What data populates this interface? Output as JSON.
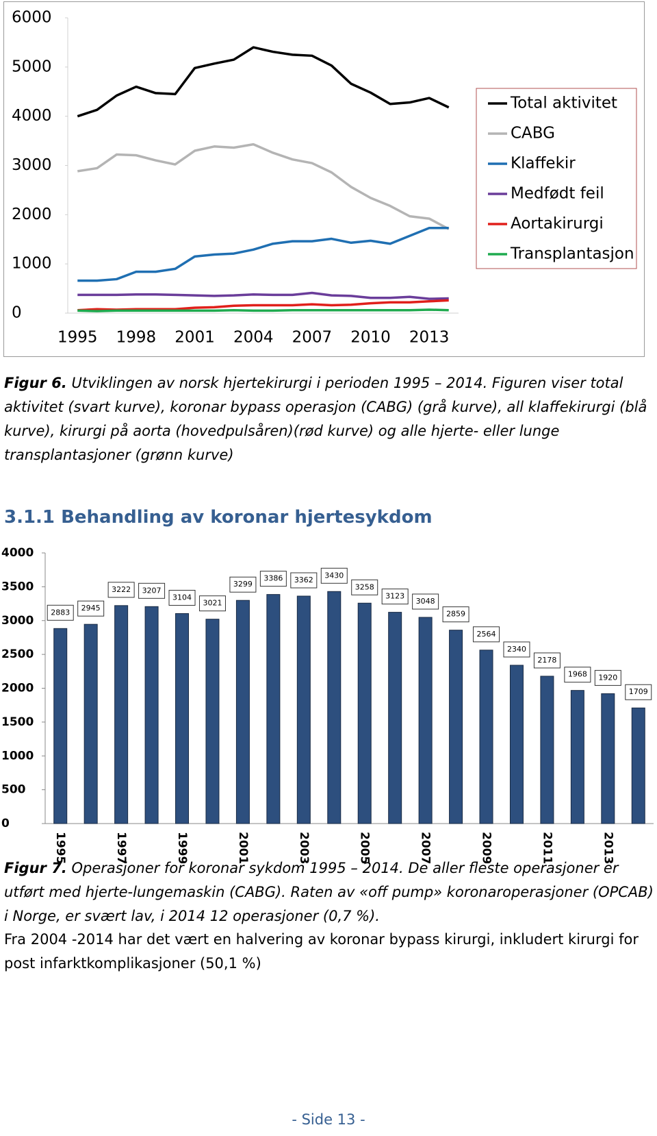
{
  "chart_data": [
    {
      "type": "line",
      "categories": [
        "1995",
        null,
        null,
        "1998",
        null,
        null,
        "2001",
        null,
        null,
        "2004",
        null,
        null,
        "2007",
        null,
        null,
        "2010",
        null,
        null,
        "2013",
        null
      ],
      "ylim": [
        0,
        6000
      ],
      "yticks": [
        0,
        1000,
        2000,
        3000,
        4000,
        5000,
        6000
      ],
      "legend": "right",
      "series": [
        {
          "name": "Total aktivitet",
          "color": "#000000",
          "values": [
            4000,
            4130,
            4420,
            4600,
            4470,
            4450,
            4980,
            5070,
            5150,
            5400,
            5310,
            5250,
            5230,
            5030,
            4660,
            4480,
            4250,
            4280,
            4370,
            4180
          ]
        },
        {
          "name": "CABG",
          "color": "#b4b4b4",
          "values": [
            2883,
            2945,
            3222,
            3207,
            3104,
            3021,
            3299,
            3386,
            3362,
            3430,
            3258,
            3123,
            3048,
            2859,
            2564,
            2340,
            2178,
            1968,
            1920,
            1709
          ]
        },
        {
          "name": "Klaffekir",
          "color": "#1f6fb2",
          "values": [
            660,
            660,
            690,
            840,
            840,
            900,
            1150,
            1190,
            1210,
            1290,
            1410,
            1460,
            1460,
            1510,
            1430,
            1470,
            1410,
            1570,
            1730,
            1730
          ]
        },
        {
          "name": "Medfødt feil",
          "color": "#6a3d9a",
          "values": [
            370,
            370,
            370,
            380,
            380,
            370,
            360,
            350,
            360,
            380,
            370,
            370,
            410,
            360,
            350,
            310,
            310,
            330,
            290,
            300
          ]
        },
        {
          "name": "Aortakirurgi",
          "color": "#e0201b",
          "values": [
            60,
            80,
            70,
            80,
            80,
            80,
            110,
            120,
            150,
            160,
            160,
            160,
            180,
            160,
            170,
            200,
            220,
            220,
            240,
            260
          ]
        },
        {
          "name": "Transplantasjon",
          "color": "#1faa4f",
          "values": [
            50,
            40,
            50,
            50,
            50,
            50,
            50,
            50,
            60,
            50,
            50,
            60,
            60,
            60,
            60,
            60,
            60,
            60,
            70,
            60
          ]
        }
      ]
    },
    {
      "type": "bar",
      "categories": [
        "1995",
        null,
        "1997",
        null,
        "1999",
        null,
        "2001",
        null,
        "2003",
        null,
        "2005",
        null,
        "2007",
        null,
        "2009",
        null,
        "2011",
        null,
        "2013",
        null
      ],
      "values": [
        2883,
        2945,
        3222,
        3207,
        3104,
        3021,
        3299,
        3386,
        3362,
        3430,
        3258,
        3123,
        3048,
        2859,
        2564,
        2340,
        2178,
        1968,
        1920,
        1709
      ],
      "color": "#2d4f7e",
      "ylim": [
        0,
        4000
      ],
      "yticks": [
        0,
        500,
        1000,
        1500,
        2000,
        2500,
        3000,
        3500,
        4000
      ]
    }
  ],
  "figure6": {
    "label": "Figur 6.",
    "text": "Utviklingen av norsk hjertekirurgi i perioden 1995 – 2014. Figuren viser total aktivitet (svart kurve), koronar bypass operasjon (CABG) (grå kurve), all klaffekirurgi (blå kurve), kirurgi på aorta (hovedpulsåren)(rød kurve) og alle hjerte- eller lunge transplantasjoner (grønn kurve)"
  },
  "heading": "3.1.1 Behandling av koronar hjertesykdom",
  "figure7": {
    "label": "Figur 7.",
    "text": "Operasjoner for koronar sykdom 1995 – 2014. De aller fleste operasjoner er utført med hjerte-lungemaskin (CABG). Raten av «off pump» koronaroperasjoner (OPCAB) i Norge, er svært lav, i 2014 12 operasjoner (0,7 %)."
  },
  "paragraph": "Fra 2004 -2014 har det vært en halvering av koronar bypass kirurgi, inkludert kirurgi for post infarktkomplikasjoner (50,1 %)",
  "footer": "- Side 13 -"
}
